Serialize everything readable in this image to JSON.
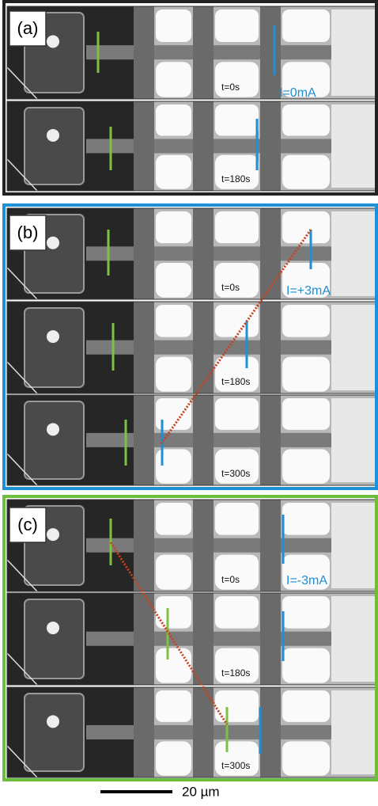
{
  "panels": [
    {
      "label": "(a)",
      "current": "I=0mA",
      "frames": [
        "t=0s",
        "t=180s"
      ]
    },
    {
      "label": "(b)",
      "current": "I=+3mA",
      "frames": [
        "t=0s",
        "t=180s",
        "t=300s"
      ]
    },
    {
      "label": "(c)",
      "current": "I=-3mA",
      "frames": [
        "t=0s",
        "t=180s",
        "t=300s"
      ]
    }
  ],
  "scale_bar": "20 µm"
}
